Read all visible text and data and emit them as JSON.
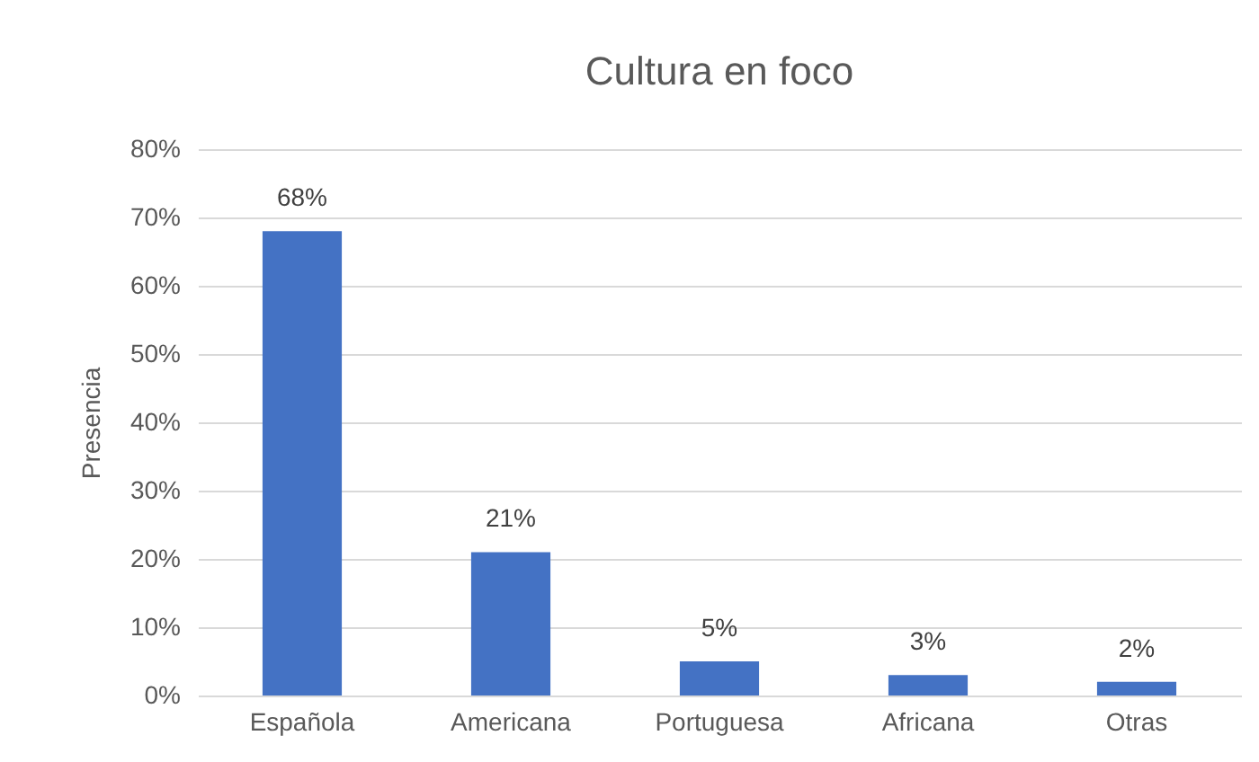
{
  "chart_data": {
    "type": "bar",
    "title": "Cultura en foco",
    "ylabel": "Presencia",
    "categories": [
      "Española",
      "Americana",
      "Portuguesa",
      "Africana",
      "Otras"
    ],
    "values": [
      68,
      21,
      5,
      3,
      2
    ],
    "value_labels": [
      "68%",
      "21%",
      "5%",
      "3%",
      "2%"
    ],
    "color": "#4472c4",
    "ylim": [
      0,
      80
    ],
    "yticks": [
      {
        "value": 0,
        "label": "0%"
      },
      {
        "value": 10,
        "label": "10%"
      },
      {
        "value": 20,
        "label": "20%"
      },
      {
        "value": 30,
        "label": "30%"
      },
      {
        "value": 40,
        "label": "40%"
      },
      {
        "value": 50,
        "label": "50%"
      },
      {
        "value": 60,
        "label": "60%"
      },
      {
        "value": 70,
        "label": "70%"
      },
      {
        "value": 80,
        "label": "80%"
      }
    ],
    "grid": "y"
  }
}
